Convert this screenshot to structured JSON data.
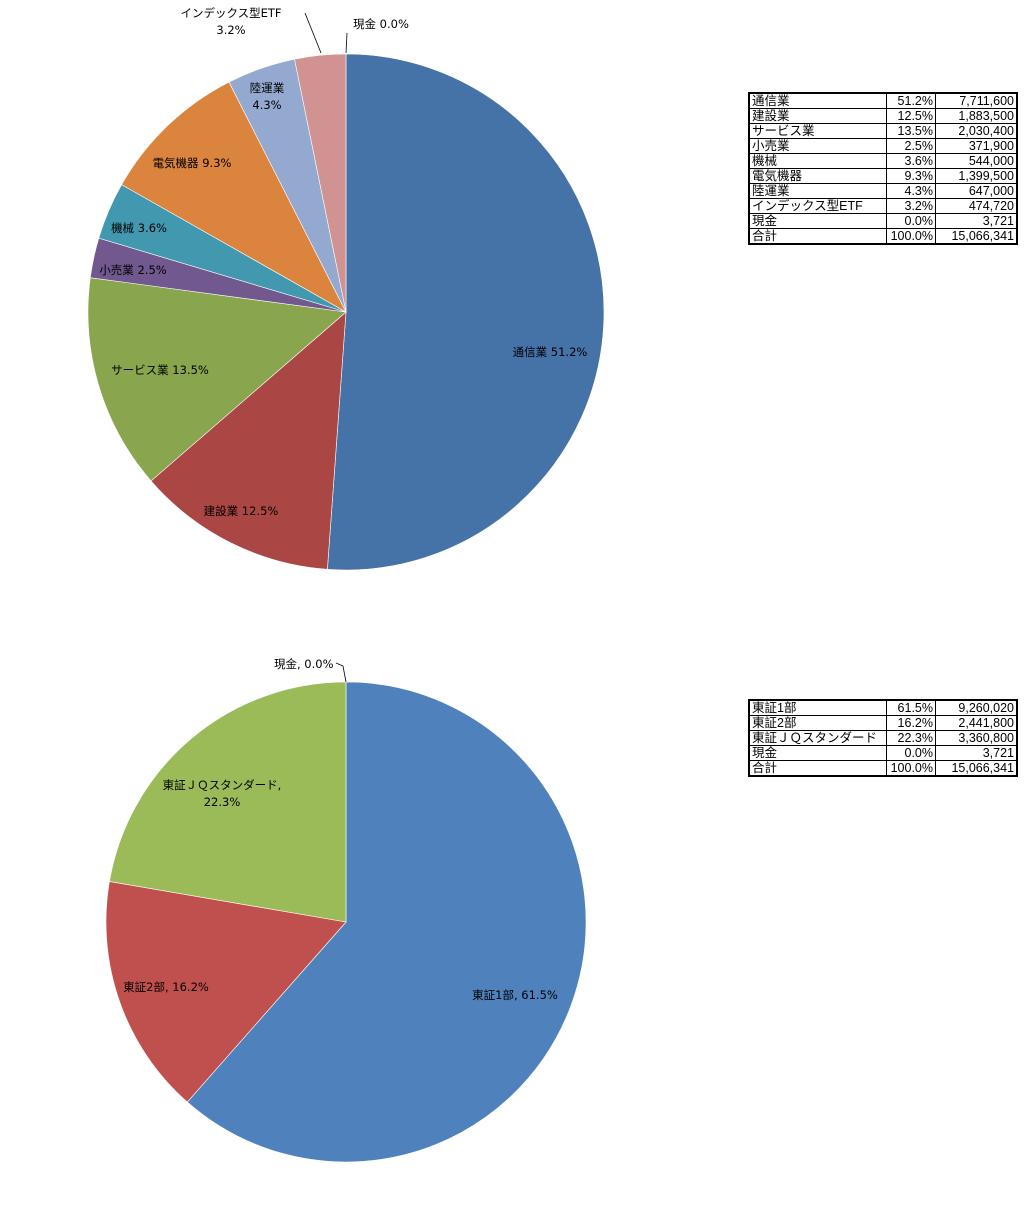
{
  "chart_data": [
    {
      "type": "pie",
      "categories": [
        "通信業",
        "建設業",
        "サービス業",
        "小売業",
        "機械",
        "電気機器",
        "陸運業",
        "インデックス型ETF",
        "現金"
      ],
      "values": [
        51.2,
        12.5,
        13.5,
        2.5,
        3.6,
        9.3,
        4.3,
        3.2,
        0.0
      ],
      "labels": [
        "通信業 51.2%",
        "建設業 12.5%",
        "サービス業 13.5%",
        "小売業 2.5%",
        "機械 3.6%",
        "電気機器 9.3%",
        "陸運業",
        "インデックス型ETF",
        "現金 0.0%"
      ],
      "labels2": [
        "",
        "",
        "",
        "",
        "",
        "",
        "4.3%",
        "3.2%",
        ""
      ],
      "colors": [
        "#4572A7",
        "#AA4643",
        "#89A54E",
        "#71588F",
        "#4198AF",
        "#DB843D",
        "#93A9CF",
        "#D19392",
        "#B9CD96"
      ],
      "unit": "%"
    },
    {
      "type": "pie",
      "categories": [
        "東証1部",
        "東証2部",
        "東証ＪＱスタンダード",
        "現金"
      ],
      "values": [
        61.5,
        16.2,
        22.3,
        0.0
      ],
      "labels": [
        "東証1部, 61.5%",
        "東証2部, 16.2%",
        "東証ＪＱスタンダード,",
        "現金, 0.0%"
      ],
      "labels2": [
        "",
        "",
        "22.3%",
        ""
      ],
      "colors": [
        "#4F81BD",
        "#C0504D",
        "#9BBB59",
        "#8064A2"
      ],
      "unit": "%"
    }
  ],
  "table1": {
    "rows": [
      [
        "通信業",
        "51.2%",
        "7,711,600"
      ],
      [
        "建設業",
        "12.5%",
        "1,883,500"
      ],
      [
        "サービス業",
        "13.5%",
        "2,030,400"
      ],
      [
        "小売業",
        "2.5%",
        "371,900"
      ],
      [
        "機械",
        "3.6%",
        "544,000"
      ],
      [
        "電気機器",
        "9.3%",
        "1,399,500"
      ],
      [
        "陸運業",
        "4.3%",
        "647,000"
      ],
      [
        "インデックス型ETF",
        "3.2%",
        "474,720"
      ],
      [
        "現金",
        "0.0%",
        "3,721"
      ],
      [
        "合計",
        "100.0%",
        "15,066,341"
      ]
    ]
  },
  "table2": {
    "rows": [
      [
        "東証1部",
        "61.5%",
        "9,260,020"
      ],
      [
        "東証2部",
        "16.2%",
        "2,441,800"
      ],
      [
        "東証ＪＱスタンダード",
        "22.3%",
        "3,360,800"
      ],
      [
        "現金",
        "0.0%",
        "3,721"
      ],
      [
        "合計",
        "100.0%",
        "15,066,341"
      ]
    ]
  }
}
